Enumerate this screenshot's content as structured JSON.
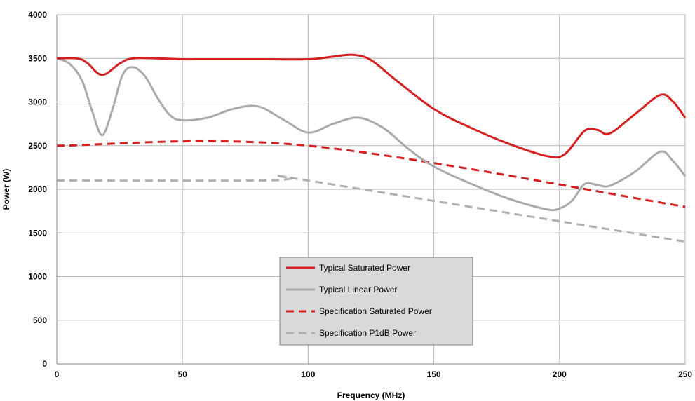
{
  "chart_data": {
    "type": "line",
    "title": "",
    "xlabel": "Frequency (MHz)",
    "ylabel": "Power (W)",
    "xlim": [
      0,
      250
    ],
    "ylim": [
      0,
      4000
    ],
    "xticks": [
      0,
      50,
      100,
      150,
      200,
      250
    ],
    "yticks": [
      0,
      500,
      1000,
      1500,
      2000,
      2500,
      3000,
      3500,
      4000
    ],
    "grid": true,
    "legend_position": "bottom-center",
    "series": [
      {
        "name": "Typical Saturated Power",
        "color": "#d42020",
        "style": "solid",
        "x": [
          0,
          8,
          12,
          18,
          25,
          30,
          40,
          50,
          60,
          80,
          100,
          110,
          118,
          125,
          135,
          150,
          165,
          180,
          195,
          202,
          210,
          215,
          220,
          230,
          240,
          245,
          250
        ],
        "y": [
          3500,
          3500,
          3450,
          3310,
          3440,
          3500,
          3500,
          3490,
          3490,
          3490,
          3490,
          3520,
          3540,
          3480,
          3250,
          2920,
          2700,
          2520,
          2380,
          2400,
          2670,
          2680,
          2640,
          2860,
          3080,
          3010,
          2820
        ]
      },
      {
        "name": "Typical Linear Power",
        "color": "#aaaaaa",
        "style": "solid",
        "x": [
          0,
          5,
          10,
          14,
          18,
          22,
          26,
          30,
          35,
          40,
          45,
          50,
          60,
          70,
          80,
          90,
          100,
          110,
          120,
          130,
          140,
          150,
          165,
          180,
          195,
          200,
          205,
          210,
          215,
          220,
          230,
          240,
          245,
          250
        ],
        "y": [
          3500,
          3440,
          3250,
          2900,
          2620,
          2900,
          3300,
          3400,
          3300,
          3050,
          2850,
          2790,
          2820,
          2920,
          2950,
          2800,
          2650,
          2750,
          2820,
          2700,
          2460,
          2260,
          2060,
          1890,
          1770,
          1780,
          1870,
          2060,
          2050,
          2040,
          2200,
          2430,
          2330,
          2150
        ]
      },
      {
        "name": "Specification Saturated Power",
        "color": "#d42020",
        "style": "dashed",
        "x": [
          0,
          100,
          250
        ],
        "y": [
          2500,
          2500,
          1800
        ]
      },
      {
        "name": "Specification P1dB Power",
        "color": "#b0b0b0",
        "style": "dashed",
        "x": [
          0,
          80,
          93,
          100,
          250
        ],
        "y": [
          2100,
          2100,
          2120,
          2100,
          1400
        ]
      }
    ]
  }
}
